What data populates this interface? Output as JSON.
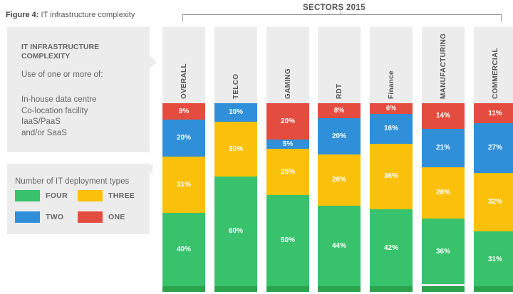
{
  "caption": {
    "prefix": "Figure 4:",
    "text": "IT infrastructure complexity"
  },
  "info": {
    "title_line1": "IT INFRASTRUCTURE",
    "title_line2": "COMPLEXITY",
    "subtitle": "Use of one or more of:",
    "items": [
      "In-house data centre",
      "Co-location facility",
      "IaaS/PaaS",
      "and/or SaaS"
    ]
  },
  "legend": {
    "title": "Number of IT deployment types",
    "items": [
      {
        "label": "FOUR",
        "color": "#37c26b"
      },
      {
        "label": "THREE",
        "color": "#fbc10a"
      },
      {
        "label": "TWO",
        "color": "#2f8fd8"
      },
      {
        "label": "ONE",
        "color": "#e44c3f"
      }
    ]
  },
  "chart_data": {
    "type": "bar",
    "stacked": true,
    "title": "SECTORS 2015",
    "categories": [
      "OVERALL",
      "TELCO",
      "GAMING",
      "RDT",
      "Finance",
      "MANUFACTURING",
      "COMMERCIAL"
    ],
    "series": [
      {
        "name": "ONE",
        "color": "#e44c3f",
        "values": [
          9,
          0,
          20,
          8,
          6,
          14,
          11
        ],
        "labels": [
          "9%",
          "",
          "20%",
          "8%",
          "6%",
          "14%",
          "11%"
        ]
      },
      {
        "name": "TWO",
        "color": "#2f8fd8",
        "values": [
          20,
          10,
          5,
          20,
          16,
          21,
          27
        ],
        "labels": [
          "20%",
          "10%",
          "5%",
          "20%",
          "16%",
          "21%",
          "27%"
        ]
      },
      {
        "name": "THREE",
        "color": "#fbc10a",
        "values": [
          31,
          30,
          25,
          28,
          36,
          28,
          32
        ],
        "labels": [
          "31%",
          "30%",
          "25%",
          "28%",
          "36%",
          "28%",
          "32%"
        ]
      },
      {
        "name": "FOUR",
        "color": "#37c26b",
        "values": [
          40,
          60,
          50,
          44,
          42,
          36,
          31
        ],
        "labels": [
          "40%",
          "60%",
          "50%",
          "44%",
          "42%",
          "36%",
          "31%"
        ]
      }
    ]
  }
}
